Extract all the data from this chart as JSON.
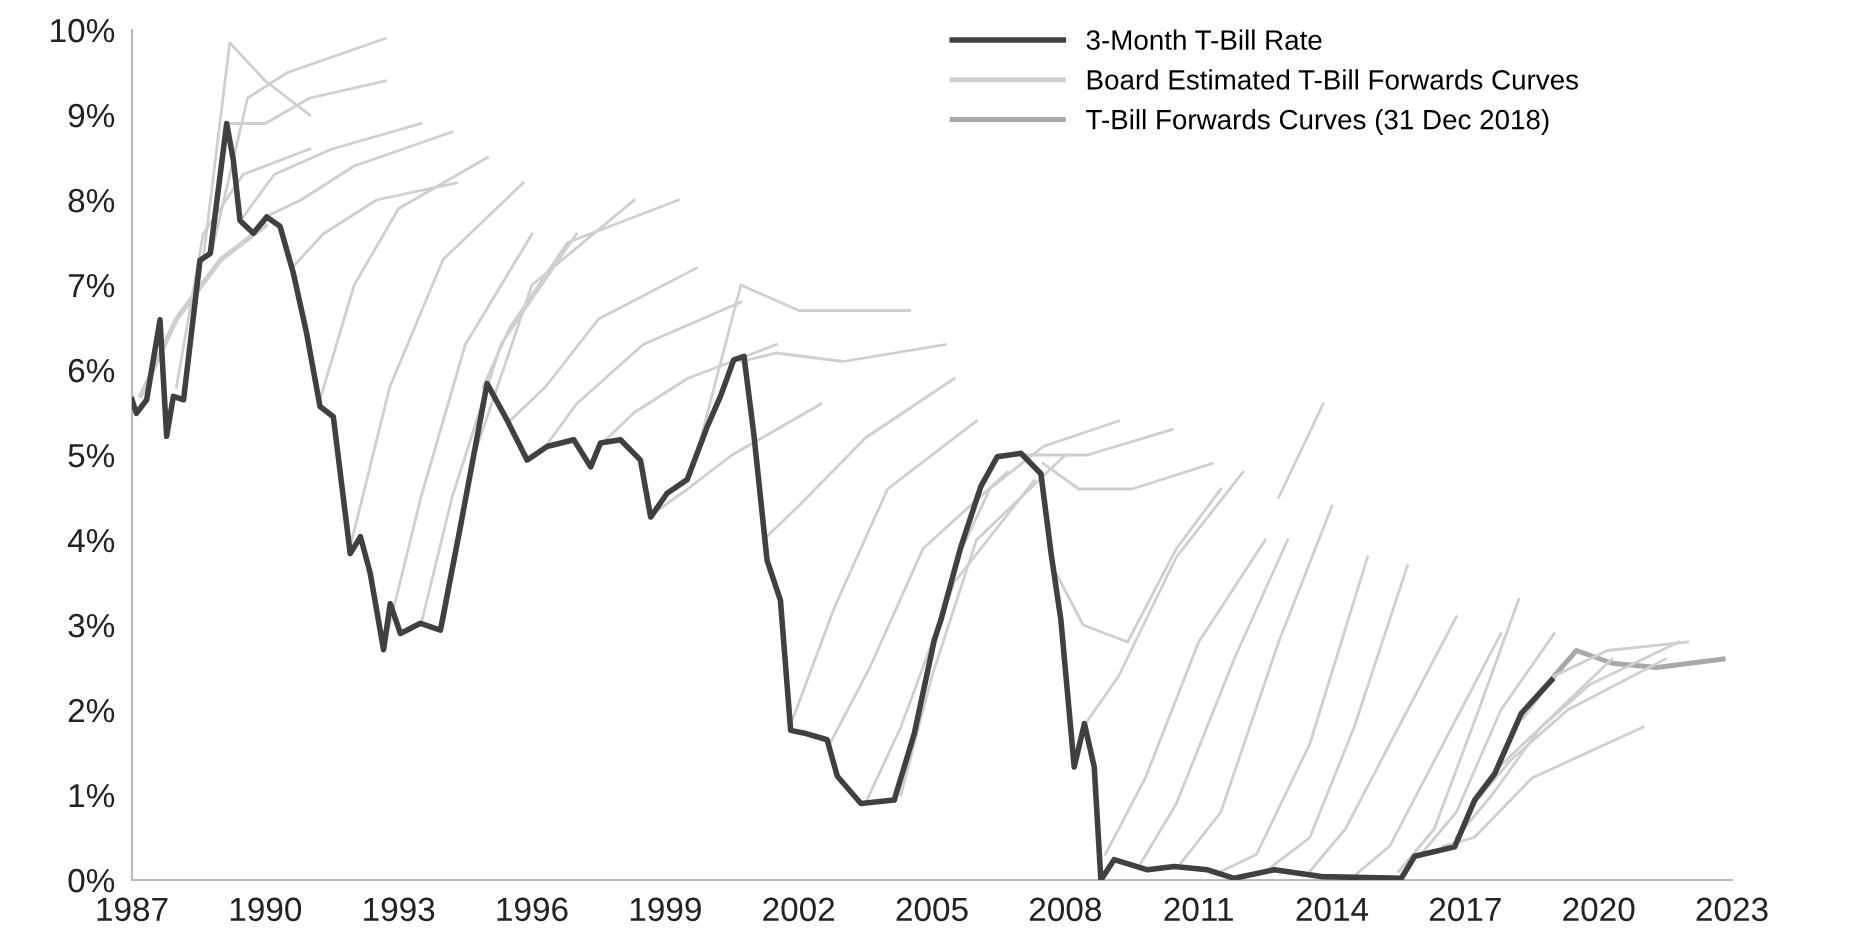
{
  "chart_data": {
    "type": "line",
    "xlim": [
      1987,
      2023
    ],
    "xticks": [
      1987,
      1990,
      1993,
      1996,
      1999,
      2002,
      2005,
      2008,
      2011,
      2014,
      2017,
      2020,
      2023
    ],
    "ylim": [
      0,
      10
    ],
    "yticks": [
      {
        "value": 0,
        "label": "0%"
      },
      {
        "value": 1,
        "label": "1%"
      },
      {
        "value": 2,
        "label": "2%"
      },
      {
        "value": 3,
        "label": "3%"
      },
      {
        "value": 4,
        "label": "4%"
      },
      {
        "value": 5,
        "label": "5%"
      },
      {
        "value": 6,
        "label": "6%"
      },
      {
        "value": 7,
        "label": "7%"
      },
      {
        "value": 8,
        "label": "8%"
      },
      {
        "value": 9,
        "label": "9%"
      },
      {
        "value": 10,
        "label": "10%"
      }
    ],
    "grid": false,
    "legend": "top right",
    "marker": "none",
    "line_style": "solid",
    "series": [
      {
        "name": "3-Month T-Bill Rate",
        "color": "#404040",
        "x": [
          1987.0,
          1987.1,
          1987.33,
          1987.63,
          1987.78,
          1987.93,
          1988.16,
          1988.53,
          1988.76,
          1989.13,
          1989.28,
          1989.43,
          1989.73,
          1990.03,
          1990.33,
          1990.63,
          1990.93,
          1991.23,
          1991.53,
          1991.91,
          1992.14,
          1992.36,
          1992.66,
          1992.81,
          1993.04,
          1993.49,
          1993.94,
          1994.39,
          1994.99,
          1995.44,
          1995.89,
          1996.34,
          1996.94,
          1997.32,
          1997.54,
          1997.99,
          1998.44,
          1998.67,
          1999.04,
          1999.49,
          1999.94,
          2000.24,
          2000.54,
          2000.77,
          2000.99,
          2001.29,
          2001.59,
          2001.82,
          2002.19,
          2002.64,
          2002.87,
          2003.4,
          2004.15,
          2004.6,
          2005.05,
          2005.2,
          2005.65,
          2006.1,
          2006.47,
          2007.0,
          2007.45,
          2007.68,
          2007.9,
          2008.2,
          2008.43,
          2008.65,
          2008.8,
          2009.1,
          2009.85,
          2010.45,
          2011.2,
          2011.8,
          2012.7,
          2013.76,
          2015.56,
          2015.86,
          2016.76,
          2017.21,
          2017.66,
          2018.26,
          2018.94
        ],
        "values": [
          5.65,
          5.49,
          5.65,
          6.59,
          5.22,
          5.69,
          5.65,
          7.29,
          7.37,
          8.9,
          8.47,
          7.76,
          7.61,
          7.8,
          7.69,
          7.14,
          6.43,
          5.57,
          5.45,
          3.84,
          4.04,
          3.61,
          2.71,
          3.25,
          2.9,
          3.02,
          2.94,
          4.16,
          5.84,
          5.41,
          4.94,
          5.1,
          5.18,
          4.86,
          5.14,
          5.18,
          4.94,
          4.27,
          4.55,
          4.71,
          5.33,
          5.69,
          6.12,
          6.16,
          5.25,
          3.76,
          3.29,
          1.76,
          1.72,
          1.65,
          1.22,
          0.9,
          0.94,
          1.72,
          2.82,
          3.06,
          3.92,
          4.63,
          4.98,
          5.02,
          4.78,
          3.84,
          3.06,
          1.33,
          1.84,
          1.33,
          0.0,
          0.24,
          0.12,
          0.16,
          0.12,
          0.02,
          0.12,
          0.04,
          0.02,
          0.28,
          0.39,
          0.94,
          1.25,
          1.96,
          2.35
        ]
      },
      {
        "name": "Board Estimated T-Bill Forwards Curves",
        "color": "#cfcfcf",
        "x": [
          1987.2,
          1988,
          1989,
          1990
        ],
        "values": [
          5.7,
          6.6,
          7.3,
          7.7
        ]
      },
      {
        "color": "#cfcfcf",
        "x": [
          1988,
          1988.6,
          1989.5,
          1991
        ],
        "values": [
          5.8,
          7.6,
          8.3,
          8.6
        ]
      },
      {
        "color": "#cfcfcf",
        "x": [
          1988.6,
          1989.2,
          1990,
          1991
        ],
        "values": [
          7.3,
          9.85,
          9.4,
          9.0
        ]
      },
      {
        "color": "#cfcfcf",
        "x": [
          1988.8,
          1989.6,
          1990.5,
          1992.7
        ],
        "values": [
          7.4,
          9.2,
          9.5,
          9.9
        ]
      },
      {
        "color": "#cfcfcf",
        "x": [
          1989.2,
          1990,
          1991,
          1992.7
        ],
        "values": [
          8.9,
          8.9,
          9.2,
          9.4
        ]
      },
      {
        "color": "#cfcfcf",
        "x": [
          1989.5,
          1990.2,
          1991.5,
          1993.5
        ],
        "values": [
          7.8,
          8.3,
          8.6,
          8.9
        ]
      },
      {
        "color": "#cfcfcf",
        "x": [
          1990,
          1990.8,
          1992,
          1994.2
        ],
        "values": [
          7.8,
          8.0,
          8.4,
          8.8
        ]
      },
      {
        "color": "#cfcfcf",
        "x": [
          1990.6,
          1991.3,
          1992.5,
          1994.3
        ],
        "values": [
          7.2,
          7.6,
          8.0,
          8.2
        ]
      },
      {
        "color": "#cfcfcf",
        "x": [
          1991.2,
          1992,
          1993,
          1995
        ],
        "values": [
          5.6,
          7.0,
          7.9,
          8.5
        ]
      },
      {
        "color": "#cfcfcf",
        "x": [
          1991.9,
          1992.8,
          1994,
          1995.8
        ],
        "values": [
          3.9,
          5.8,
          7.3,
          8.2
        ]
      },
      {
        "color": "#cfcfcf",
        "x": [
          1992.7,
          1993.5,
          1994.5,
          1996
        ],
        "values": [
          2.8,
          4.5,
          6.3,
          7.6
        ]
      },
      {
        "color": "#cfcfcf",
        "x": [
          1993.5,
          1994.2,
          1995.3,
          1997
        ],
        "values": [
          3.0,
          4.5,
          6.3,
          7.6
        ]
      },
      {
        "color": "#cfcfcf",
        "x": [
          1994,
          1994.7,
          1996,
          1998.3
        ],
        "values": [
          3.0,
          5.0,
          7.0,
          8.0
        ]
      },
      {
        "color": "#cfcfcf",
        "x": [
          1994.9,
          1995.5,
          1996.8,
          1999.3
        ],
        "values": [
          5.8,
          6.5,
          7.5,
          8.0
        ]
      },
      {
        "color": "#cfcfcf",
        "x": [
          1995.5,
          1996.3,
          1997.5,
          1999.7
        ],
        "values": [
          5.4,
          5.8,
          6.6,
          7.2
        ]
      },
      {
        "color": "#cfcfcf",
        "x": [
          1996.3,
          1997,
          1998.5,
          2000.7
        ],
        "values": [
          5.1,
          5.6,
          6.3,
          6.8
        ]
      },
      {
        "color": "#cfcfcf",
        "x": [
          1997.5,
          1998.3,
          1999.5,
          2001.5
        ],
        "values": [
          5.1,
          5.5,
          5.9,
          6.3
        ]
      },
      {
        "color": "#cfcfcf",
        "x": [
          1998.7,
          1999.5,
          2000.5,
          2002.5
        ],
        "values": [
          4.3,
          4.6,
          5.0,
          5.6
        ]
      },
      {
        "color": "#cfcfcf",
        "x": [
          1999.7,
          2000.7,
          2002,
          2004.5
        ],
        "values": [
          5.0,
          7.0,
          6.7,
          6.7
        ]
      },
      {
        "color": "#cfcfcf",
        "x": [
          2000.7,
          2001.5,
          2003,
          2005.3
        ],
        "values": [
          6.1,
          6.2,
          6.1,
          6.3
        ]
      },
      {
        "color": "#cfcfcf",
        "x": [
          2001.2,
          2002,
          2003.5,
          2005.5
        ],
        "values": [
          4.0,
          4.4,
          5.2,
          5.9
        ]
      },
      {
        "color": "#cfcfcf",
        "x": [
          2001.8,
          2002.8,
          2004,
          2006
        ],
        "values": [
          1.8,
          3.2,
          4.6,
          5.4
        ]
      },
      {
        "color": "#cfcfcf",
        "x": [
          2002.7,
          2003.6,
          2004.8,
          2006.7
        ],
        "values": [
          1.6,
          2.5,
          3.9,
          4.8
        ]
      },
      {
        "color": "#cfcfcf",
        "x": [
          2003.5,
          2004.3,
          2005.5,
          2007.3
        ],
        "values": [
          0.9,
          1.8,
          3.5,
          4.7
        ]
      },
      {
        "color": "#cfcfcf",
        "x": [
          2004.3,
          2005,
          2006,
          2008
        ],
        "values": [
          1.0,
          2.4,
          4.0,
          5.0
        ]
      },
      {
        "color": "#cfcfcf",
        "x": [
          2005.5,
          2006.3,
          2007.5,
          2009.2
        ],
        "values": [
          3.7,
          4.6,
          5.1,
          5.4
        ]
      },
      {
        "color": "#cfcfcf",
        "x": [
          2006.5,
          2007.3,
          2008.5,
          2010.4
        ],
        "values": [
          5.0,
          5.0,
          5.0,
          5.3
        ]
      },
      {
        "color": "#cfcfcf",
        "x": [
          2007.5,
          2008.3,
          2009.5,
          2011.3
        ],
        "values": [
          4.9,
          4.6,
          4.6,
          4.9
        ]
      },
      {
        "color": "#cfcfcf",
        "x": [
          2007.8,
          2008.4,
          2009.4,
          2010.5,
          2011.5
        ],
        "values": [
          3.6,
          3.0,
          2.8,
          3.9,
          4.6
        ]
      },
      {
        "color": "#cfcfcf",
        "x": [
          2008.4,
          2009.2,
          2010.5,
          2012
        ],
        "values": [
          1.8,
          2.4,
          3.8,
          4.8
        ]
      },
      {
        "color": "#cfcfcf",
        "x": [
          2008.9,
          2009.8,
          2011,
          2012.5
        ],
        "values": [
          0.3,
          1.2,
          2.8,
          4.0
        ]
      },
      {
        "color": "#cfcfcf",
        "x": [
          2009.7,
          2010.5,
          2011.8,
          2013
        ],
        "values": [
          0.2,
          0.9,
          2.6,
          4.0
        ]
      },
      {
        "color": "#cfcfcf",
        "x": [
          2010.6,
          2011.5,
          2012.8,
          2014
        ],
        "values": [
          0.2,
          0.8,
          2.8,
          4.4
        ]
      },
      {
        "color": "#cfcfcf",
        "x": [
          2011.5,
          2012.3,
          2013.5,
          2014.8
        ],
        "values": [
          0.1,
          0.3,
          1.6,
          3.8
        ]
      },
      {
        "color": "#cfcfcf",
        "x": [
          2012.8,
          2013.8
        ],
        "values": [
          4.5,
          5.6
        ]
      },
      {
        "color": "#cfcfcf",
        "x": [
          2012.5,
          2013.5,
          2014.5,
          2015.7
        ],
        "values": [
          0.1,
          0.5,
          1.8,
          3.7
        ]
      },
      {
        "color": "#cfcfcf",
        "x": [
          2013.5,
          2014.3,
          2015.5,
          2016.8
        ],
        "values": [
          0.1,
          0.6,
          1.8,
          3.1
        ]
      },
      {
        "color": "#cfcfcf",
        "x": [
          2014.5,
          2015.3,
          2016.5,
          2017.8
        ],
        "values": [
          0.05,
          0.4,
          1.6,
          2.9
        ]
      },
      {
        "color": "#cfcfcf",
        "x": [
          2015.5,
          2016.3,
          2017.3,
          2018.2
        ],
        "values": [
          0.1,
          0.6,
          2.0,
          3.3
        ]
      },
      {
        "color": "#cfcfcf",
        "x": [
          2016,
          2016.8,
          2017.8,
          2019
        ],
        "values": [
          0.3,
          0.8,
          2.0,
          2.9
        ]
      },
      {
        "color": "#cfcfcf",
        "x": [
          2016.5,
          2017.2,
          2018.5,
          2021
        ],
        "values": [
          0.4,
          0.5,
          1.2,
          1.8
        ]
      },
      {
        "color": "#cfcfcf",
        "x": [
          2016.8,
          2017.6,
          2018.7,
          2020.3
        ],
        "values": [
          0.5,
          1.0,
          1.8,
          2.6
        ]
      },
      {
        "color": "#cfcfcf",
        "x": [
          2017.2,
          2018,
          2019.3,
          2021.5
        ],
        "values": [
          0.9,
          1.4,
          2.0,
          2.6
        ]
      },
      {
        "color": "#cfcfcf",
        "x": [
          2017.7,
          2018.5,
          2019.8,
          2021.8
        ],
        "values": [
          1.3,
          1.7,
          2.3,
          2.8
        ]
      },
      {
        "color": "#cfcfcf",
        "x": [
          2018.3,
          2019,
          2020.2,
          2022
        ],
        "values": [
          1.9,
          2.4,
          2.7,
          2.8
        ]
      },
      {
        "name": "T-Bill Forwards Curves (31 Dec 2018)",
        "color": "#a8a8a8",
        "x": [
          2019,
          2019.5,
          2020.3,
          2021.3,
          2022.8
        ],
        "values": [
          2.4,
          2.7,
          2.55,
          2.5,
          2.6
        ]
      }
    ]
  }
}
